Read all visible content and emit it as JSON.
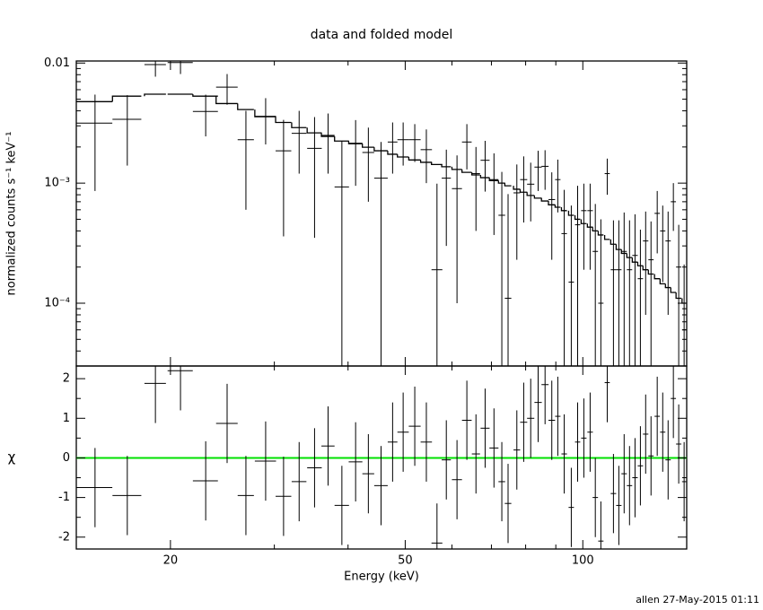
{
  "chart_data": [
    {
      "type": "scatter",
      "title": "data and folded model",
      "y_label": "normalized counts s⁻¹ keV⁻¹",
      "x_label": "Energy (keV)",
      "xlog": true,
      "ylog": true,
      "xlim": [
        13.85,
        150
      ],
      "ylim": [
        3e-05,
        0.0104
      ],
      "xticks": [
        20,
        50,
        100
      ],
      "xminor_ticks": [
        30,
        40,
        60,
        70,
        80,
        90
      ],
      "yticks": [
        {
          "value": 0.01,
          "label": "0.01"
        },
        {
          "value": 0.001,
          "label": "10⁻³"
        },
        {
          "value": 0.0001,
          "label": "10⁻⁴"
        }
      ],
      "yminor_ticks": [
        3e-05,
        4e-05,
        5e-05,
        6e-05,
        7e-05,
        8e-05,
        9e-05,
        0.0002,
        0.0003,
        0.0004,
        0.0005,
        0.0006,
        0.0007,
        0.0008,
        0.0009,
        0.002,
        0.003,
        0.004,
        0.005,
        0.006,
        0.007,
        0.008,
        0.009
      ],
      "x": [
        14.9,
        16.9,
        18.86,
        20.8,
        22.95,
        24.95,
        26.85,
        29.0,
        31.1,
        33.05,
        35.1,
        37.0,
        39.05,
        41.2,
        43.3,
        45.5,
        47.6,
        49.6,
        51.9,
        54.3,
        56.6,
        58.7,
        61.2,
        63.6,
        65.9,
        68.3,
        70.7,
        72.9,
        74.7,
        77.3,
        79.4,
        81.6,
        84.0,
        86.3,
        88.6,
        90.7,
        93.0,
        95.6,
        98.0,
        100.4,
        102.9,
        105.0,
        107.3,
        110.0,
        112.7,
        115.1,
        117.5,
        120.0,
        122.6,
        125.2,
        127.8,
        130.5,
        133.7,
        136.6,
        139.5,
        142.4,
        145.4,
        148.5
      ],
      "x_err": [
        1.04,
        0.95,
        0.79,
        1.02,
        1.12,
        1.05,
        0.85,
        1.2,
        0.95,
        0.95,
        1.0,
        0.95,
        1.1,
        1.1,
        1.0,
        1.2,
        0.9,
        1.1,
        1.2,
        1.2,
        1.2,
        1.05,
        1.2,
        1.2,
        1.05,
        1.2,
        1.25,
        0.95,
        0.95,
        1.0,
        1.1,
        1.15,
        1.2,
        1.2,
        1.15,
        0.95,
        1.0,
        1.0,
        1.0,
        1.05,
        1.1,
        1.1,
        1.1,
        1.1,
        1.2,
        1.2,
        1.25,
        1.25,
        1.3,
        1.3,
        1.35,
        1.35,
        1.4,
        1.4,
        1.45,
        1.45,
        1.5,
        1.2
      ],
      "values": [
        0.00316,
        0.0034,
        0.0097,
        0.0101,
        0.00395,
        0.0063,
        0.0023,
        0.0036,
        0.00186,
        0.0026,
        0.00195,
        0.0025,
        0.00093,
        0.00215,
        0.0018,
        0.0011,
        0.0022,
        0.0023,
        0.0023,
        0.0019,
        0.00019,
        0.0011,
        0.0009,
        0.0022,
        0.0012,
        0.00155,
        0.00107,
        0.00054,
        0.00011,
        0.00083,
        0.00107,
        0.00098,
        0.00136,
        0.00138,
        0.00073,
        0.00107,
        0.00038,
        0.00015,
        0.00045,
        0.00059,
        0.00059,
        0.00027,
        0.0001,
        0.0012,
        0.00019,
        0.00019,
        0.00027,
        0.00019,
        0.00025,
        0.00016,
        0.00033,
        0.00023,
        0.00056,
        0.0004,
        0.00033,
        0.0007,
        0.0002,
        6e-05
      ],
      "y_err": [
        0.0023,
        0.002,
        0.002,
        0.002,
        0.0015,
        0.0018,
        0.0017,
        0.0015,
        0.0015,
        0.0014,
        0.0016,
        0.0013,
        0.0013,
        0.0012,
        0.0011,
        0.0011,
        0.001,
        0.0009,
        0.0008,
        0.0009,
        0.0008,
        0.0008,
        0.0008,
        0.0009,
        0.0008,
        0.0007,
        0.0007,
        0.0007,
        0.0007,
        0.0006,
        0.0006,
        0.0005,
        0.0005,
        0.0005,
        0.0005,
        0.0005,
        0.0005,
        0.0005,
        0.0005,
        0.0004,
        0.0004,
        0.0004,
        0.0004,
        0.0004,
        0.0003,
        0.0003,
        0.0003,
        0.0003,
        0.0003,
        0.00025,
        0.00025,
        0.00025,
        0.0003,
        0.00025,
        0.00025,
        0.0003,
        0.00025,
        0.00015
      ],
      "model": [
        0.00477,
        0.0053,
        0.0055,
        0.0055,
        0.0053,
        0.0046,
        0.0041,
        0.00357,
        0.0032,
        0.0029,
        0.00262,
        0.00245,
        0.00224,
        0.00213,
        0.00199,
        0.00186,
        0.00174,
        0.00165,
        0.00156,
        0.00149,
        0.00143,
        0.00137,
        0.0013,
        0.00123,
        0.00117,
        0.00111,
        0.00105,
        0.001,
        0.00095,
        0.00089,
        0.00084,
        0.00079,
        0.00075,
        0.00071,
        0.00066,
        0.00063,
        0.00059,
        0.00054,
        0.0005,
        0.00046,
        0.00043,
        0.0004,
        0.00037,
        0.00034,
        0.00031,
        0.00028,
        0.00026,
        0.00024,
        0.00022,
        0.000205,
        0.00019,
        0.000175,
        0.00016,
        0.000145,
        0.000135,
        0.000123,
        0.00011,
        0.0001
      ],
      "color": "#000000"
    },
    {
      "type": "residuals",
      "y_label": "χ",
      "ylim": [
        -2.3,
        2.32
      ],
      "yticks": [
        -2,
        -1,
        0,
        1,
        2
      ],
      "yminor_ticks": [
        -1.5,
        -0.5,
        0.5,
        1.5
      ],
      "values": [
        -0.75,
        -0.95,
        1.88,
        2.2,
        -0.58,
        0.87,
        -0.95,
        -0.08,
        -0.97,
        -0.6,
        -0.25,
        0.3,
        -1.2,
        -0.1,
        -0.4,
        -0.7,
        0.4,
        0.65,
        0.8,
        0.4,
        -2.15,
        -0.05,
        -0.55,
        0.95,
        0.1,
        0.75,
        0.25,
        -0.6,
        -1.15,
        0.2,
        0.9,
        1.0,
        1.4,
        1.85,
        0.95,
        1.05,
        0.1,
        -1.25,
        0.4,
        0.5,
        0.65,
        -1.0,
        -2.1,
        1.9,
        -0.9,
        -1.2,
        -0.4,
        -0.7,
        -0.5,
        -0.2,
        0.6,
        0.05,
        1.05,
        0.65,
        -0.05,
        1.5,
        0.35,
        -0.6
      ],
      "y_err": 1,
      "reference_line": 0,
      "reference_color": "#00e000",
      "color": "#000000"
    }
  ],
  "footer": "allen 27-May-2015 01:11"
}
